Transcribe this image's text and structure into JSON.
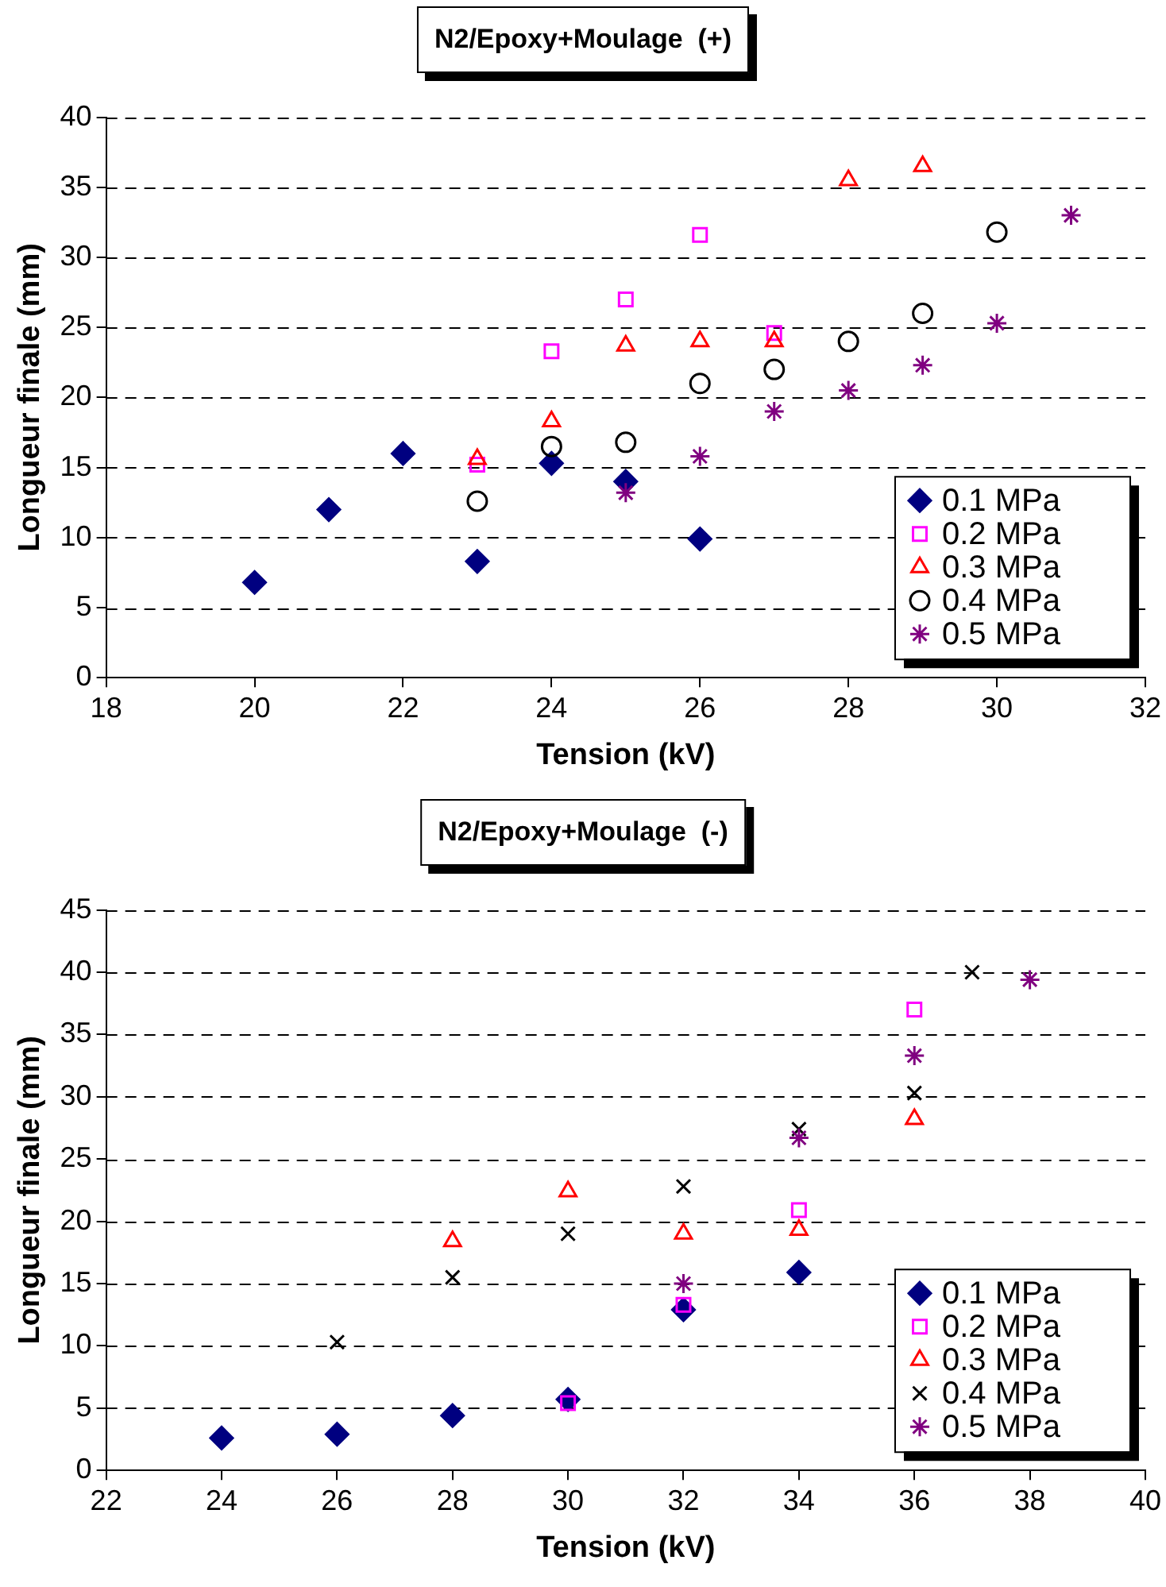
{
  "chart_data": [
    {
      "type": "scatter",
      "title": "N2/Epoxy+Moulage  (+)",
      "xlabel": "Tension (kV)",
      "ylabel": "Longueur finale (mm)",
      "xlim": [
        18,
        32
      ],
      "xticks": [
        18,
        20,
        22,
        24,
        26,
        28,
        30,
        32
      ],
      "ylim": [
        0,
        40
      ],
      "yticks": [
        0,
        5,
        10,
        15,
        20,
        25,
        30,
        35,
        40
      ],
      "grid": "y",
      "legend": "bottom right",
      "series": [
        {
          "name": "0.1 MPa",
          "color": "#000080",
          "marker": "diamond",
          "x": [
            20,
            21,
            22,
            23,
            24,
            25,
            26
          ],
          "values": [
            6.8,
            12,
            16,
            8.3,
            15.3,
            14,
            9.9
          ]
        },
        {
          "name": "0.2 MPa",
          "color": "#ff00ff",
          "marker": "square",
          "x": [
            23,
            24,
            25,
            26,
            27
          ],
          "values": [
            15.2,
            23.3,
            27,
            31.6,
            24.6
          ]
        },
        {
          "name": "0.3 MPa",
          "color": "#ff0000",
          "marker": "triangle",
          "x": [
            23,
            24,
            25,
            26,
            27,
            28,
            29
          ],
          "values": [
            15.6,
            18.3,
            23.7,
            24,
            24,
            35.5,
            36.5
          ]
        },
        {
          "name": "0.4 MPa",
          "color": "#000000",
          "marker": "circle",
          "x": [
            23,
            24,
            25,
            26,
            27,
            28,
            29,
            30
          ],
          "values": [
            12.6,
            16.5,
            16.8,
            21,
            22,
            24,
            26,
            31.8
          ]
        },
        {
          "name": "0.5 MPa",
          "color": "#800080",
          "marker": "cross",
          "x": [
            25,
            26,
            27,
            28,
            29,
            30,
            31
          ],
          "values": [
            13.2,
            15.8,
            19,
            20.5,
            22.3,
            25.3,
            33
          ]
        }
      ]
    },
    {
      "type": "scatter",
      "title": "N2/Epoxy+Moulage  (-)",
      "xlabel": "Tension (kV)",
      "ylabel": "Longueur finale (mm)",
      "xlim": [
        22,
        40
      ],
      "xticks": [
        22,
        24,
        26,
        28,
        30,
        32,
        34,
        36,
        38,
        40
      ],
      "ylim": [
        0,
        45
      ],
      "yticks": [
        0,
        5,
        10,
        15,
        20,
        25,
        30,
        35,
        40,
        45
      ],
      "grid": "y",
      "legend": "bottom right",
      "series": [
        {
          "name": "0.1 MPa",
          "color": "#000080",
          "marker": "diamond",
          "x": [
            24,
            26,
            28,
            30,
            32,
            34
          ],
          "values": [
            2.6,
            2.9,
            4.4,
            5.7,
            12.9,
            15.9
          ]
        },
        {
          "name": "0.2 MPa",
          "color": "#ff00ff",
          "marker": "square",
          "x": [
            30,
            32,
            34,
            36
          ],
          "values": [
            5.4,
            13.3,
            20.9,
            37
          ]
        },
        {
          "name": "0.3 MPa",
          "color": "#ff0000",
          "marker": "triangle",
          "x": [
            28,
            30,
            32,
            34,
            36
          ],
          "values": [
            18.4,
            22.4,
            19,
            19.3,
            28.2
          ]
        },
        {
          "name": "0.4 MPa",
          "color": "#000000",
          "marker": "cross",
          "x": [
            26,
            28,
            30,
            32,
            34,
            36,
            37
          ],
          "values": [
            10.3,
            15.5,
            19,
            22.8,
            27.4,
            30.3,
            40
          ]
        },
        {
          "name": "0.5 MPa",
          "color": "#800080",
          "marker": "cross",
          "x": [
            32,
            34,
            36,
            38
          ],
          "values": [
            15,
            26.7,
            33.3,
            39.4
          ]
        }
      ]
    }
  ]
}
